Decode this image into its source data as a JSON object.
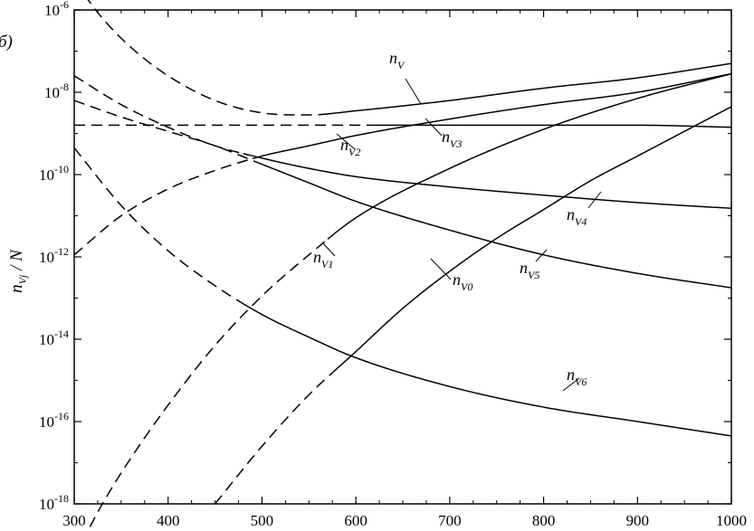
{
  "chart_data": {
    "type": "line",
    "panel_label": "б)",
    "ylabel_main": "n",
    "ylabel_sub": "Vj",
    "ylabel_rest": " / N",
    "x_ticks": [
      "300",
      "400",
      "500",
      "600",
      "700",
      "800",
      "900",
      "1000"
    ],
    "y_ticks": [
      {
        "base": "10",
        "exp": "-6",
        "value": -6
      },
      {
        "base": "10",
        "exp": "-8",
        "value": -8
      },
      {
        "base": "10",
        "exp": "-10",
        "value": -10
      },
      {
        "base": "10",
        "exp": "-12",
        "value": -12
      },
      {
        "base": "10",
        "exp": "-14",
        "value": -14
      },
      {
        "base": "10",
        "exp": "-16",
        "value": -16
      },
      {
        "base": "10",
        "exp": "-18",
        "value": -18
      }
    ],
    "xlim": [
      300,
      1000
    ],
    "ylim_log10": [
      -18,
      -6
    ],
    "y_scale": "log",
    "series": [
      {
        "name": "V",
        "style": "dashed-solid",
        "switch_x": 560,
        "x": [
          300,
          330,
          360,
          400,
          450,
          500,
          550,
          600,
          700,
          800,
          900,
          1000
        ],
        "log10_y": [
          -5.3,
          -6.2,
          -6.9,
          -7.6,
          -8.2,
          -8.5,
          -8.55,
          -8.45,
          -8.2,
          -7.9,
          -7.65,
          -7.3
        ]
      },
      {
        "name": "V3",
        "style": "dashed-solid",
        "switch_x": 620,
        "x": [
          300,
          400,
          500,
          600,
          640,
          700,
          800,
          900,
          1000
        ],
        "log10_y": [
          -8.8,
          -8.8,
          -8.8,
          -8.8,
          -8.8,
          -8.8,
          -8.8,
          -8.8,
          -8.85
        ]
      },
      {
        "name": "V2",
        "style": "dashed-solid",
        "switch_x": 490,
        "x": [
          300,
          350,
          400,
          450,
          500,
          550,
          600,
          700,
          800,
          900,
          1000
        ],
        "log10_y": [
          -11.95,
          -11.0,
          -10.35,
          -9.9,
          -9.55,
          -9.3,
          -9.05,
          -8.65,
          -8.3,
          -8.0,
          -7.55
        ]
      },
      {
        "name": "V4",
        "style": "dashed-solid",
        "switch_x": 480,
        "x": [
          300,
          350,
          400,
          450,
          500,
          550,
          600,
          700,
          800,
          900,
          1000
        ],
        "log10_y": [
          -7.6,
          -8.3,
          -8.85,
          -9.3,
          -9.6,
          -9.85,
          -10.05,
          -10.3,
          -10.5,
          -10.68,
          -10.82
        ]
      },
      {
        "name": "V5",
        "style": "dashed-solid",
        "switch_x": 500,
        "x": [
          300,
          350,
          400,
          450,
          500,
          550,
          600,
          700,
          800,
          900,
          1000
        ],
        "log10_y": [
          -8.2,
          -8.6,
          -8.95,
          -9.3,
          -9.75,
          -10.2,
          -10.65,
          -11.35,
          -11.95,
          -12.4,
          -12.75
        ]
      },
      {
        "name": "V1",
        "style": "dashed-solid",
        "switch_x": 570,
        "x": [
          300,
          330,
          360,
          400,
          450,
          500,
          550,
          600,
          700,
          800,
          900,
          1000
        ],
        "log10_y": [
          -19.3,
          -18.0,
          -16.9,
          -15.6,
          -14.15,
          -12.95,
          -11.95,
          -11.05,
          -9.85,
          -8.9,
          -8.15,
          -7.55
        ]
      },
      {
        "name": "V0",
        "style": "dashed-solid",
        "switch_x": 580,
        "x": [
          450,
          500,
          550,
          600,
          650,
          700,
          750,
          800,
          850,
          900,
          950,
          1000
        ],
        "log10_y": [
          -18.0,
          -16.6,
          -15.35,
          -14.3,
          -13.25,
          -12.35,
          -11.55,
          -10.85,
          -10.15,
          -9.55,
          -8.95,
          -8.35
        ]
      },
      {
        "name": "V6",
        "style": "dashed-solid",
        "switch_x": 480,
        "x": [
          300,
          350,
          400,
          450,
          500,
          550,
          600,
          700,
          800,
          900,
          1000
        ],
        "log10_y": [
          -9.35,
          -10.75,
          -11.85,
          -12.7,
          -13.4,
          -13.95,
          -14.45,
          -15.15,
          -15.65,
          -16.0,
          -16.35
        ]
      }
    ],
    "labels": [
      {
        "main": "n",
        "sub": "V",
        "series": "V"
      },
      {
        "main": "n",
        "sub": "V3",
        "series": "V3"
      },
      {
        "main": "n",
        "sub": "V2",
        "series": "V2"
      },
      {
        "main": "n",
        "sub": "V4",
        "series": "V4"
      },
      {
        "main": "n",
        "sub": "V5",
        "series": "V5"
      },
      {
        "main": "n",
        "sub": "V1",
        "series": "V1"
      },
      {
        "main": "n",
        "sub": "V0",
        "series": "V0"
      },
      {
        "main": "n",
        "sub": "V6",
        "series": "V6"
      }
    ]
  }
}
